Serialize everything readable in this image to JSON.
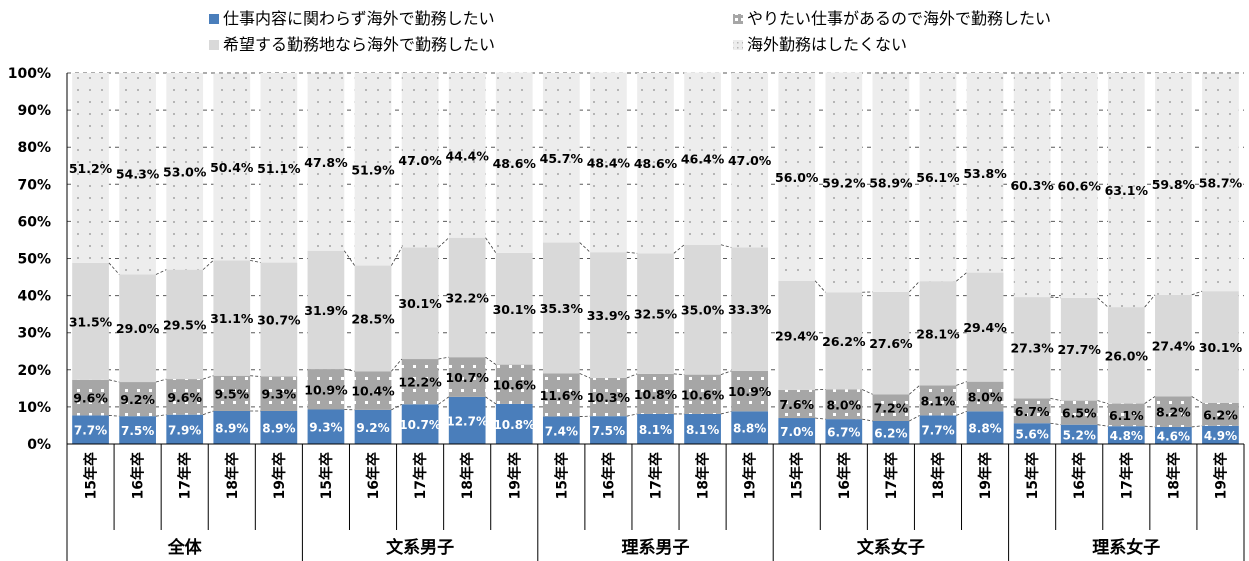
{
  "chart_data": {
    "type": "bar",
    "stacked": true,
    "percent": true,
    "ylim": [
      0,
      100
    ],
    "yticks": [
      "0%",
      "10%",
      "20%",
      "30%",
      "40%",
      "50%",
      "60%",
      "70%",
      "80%",
      "90%",
      "100%"
    ],
    "groups": [
      "全体",
      "文系男子",
      "理系男子",
      "文系女子",
      "理系女子"
    ],
    "years": [
      "15年卒",
      "16年卒",
      "17年卒",
      "18年卒",
      "19年卒"
    ],
    "legend_position": "top",
    "series": [
      {
        "name": "仕事内容に関わらず海外で勤務したい",
        "color": "#4a7ebb",
        "values": [
          7.7,
          7.5,
          7.9,
          8.9,
          8.9,
          9.3,
          9.2,
          10.7,
          12.7,
          10.8,
          7.4,
          7.5,
          8.1,
          8.1,
          8.8,
          7.0,
          6.7,
          6.2,
          7.7,
          8.8,
          5.6,
          5.2,
          4.8,
          4.6,
          4.9
        ]
      },
      {
        "name": "やりたい仕事があるので海外で勤務したい",
        "color": "#a6a6a6",
        "values": [
          9.6,
          9.2,
          9.6,
          9.5,
          9.3,
          10.9,
          10.4,
          12.2,
          10.7,
          10.6,
          11.6,
          10.3,
          10.8,
          10.6,
          10.9,
          7.6,
          8.0,
          7.2,
          8.1,
          8.0,
          6.7,
          6.5,
          6.1,
          8.2,
          6.2
        ]
      },
      {
        "name": "希望する勤務地なら海外で勤務したい",
        "color": "#d9d9d9",
        "values": [
          31.5,
          29.0,
          29.5,
          31.1,
          30.7,
          31.9,
          28.5,
          30.1,
          32.2,
          30.1,
          35.3,
          33.9,
          32.5,
          35.0,
          33.3,
          29.4,
          26.2,
          27.6,
          28.1,
          29.4,
          27.3,
          27.7,
          26.0,
          27.4,
          30.1
        ]
      },
      {
        "name": "海外勤務はしたくない",
        "color": "#ececec",
        "values": [
          51.2,
          54.3,
          53.0,
          50.4,
          51.1,
          47.8,
          51.9,
          47.0,
          44.4,
          48.6,
          45.7,
          48.4,
          48.6,
          46.4,
          47.0,
          56.0,
          59.2,
          58.9,
          56.1,
          53.8,
          60.3,
          60.6,
          63.1,
          59.8,
          58.7
        ]
      }
    ]
  }
}
